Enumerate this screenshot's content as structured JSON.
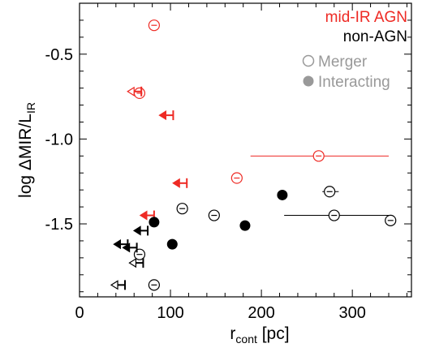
{
  "colors": {
    "agn": "#ee2a24",
    "nonagn": "#000000",
    "legend_gray": "#999999"
  },
  "chart_data": {
    "type": "scatter",
    "xlabel": {
      "main": "r",
      "sub": "cont",
      "unit": " [pc]"
    },
    "ylabel": {
      "main": "log ΔMIR/L",
      "sub": "IR"
    },
    "xlim": [
      0,
      365
    ],
    "ylim": [
      -1.93,
      -0.2
    ],
    "xticks": [
      0,
      100,
      200,
      300
    ],
    "xtick_labels": [
      "0",
      "100",
      "200",
      "300"
    ],
    "yticks": [
      -1.5,
      -1.0,
      -0.5
    ],
    "ytick_labels": [
      "-1.5",
      "-1.0",
      "-0.5"
    ],
    "legend": {
      "position": "top-right",
      "entries": [
        {
          "label": "mid-IR AGN",
          "kind": "text",
          "color": "#ee2a24"
        },
        {
          "label": "non-AGN",
          "kind": "text",
          "color": "#000000"
        },
        {
          "label": "Merger",
          "kind": "open-circle",
          "color": "#999999"
        },
        {
          "label": "Interacting",
          "kind": "filled-circle",
          "color": "#999999"
        }
      ]
    },
    "series": [
      {
        "name": "mid-IR AGN",
        "color": "#ee2a24",
        "points": [
          {
            "x": 82,
            "y": -0.33,
            "marker": "open-circle"
          },
          {
            "x": 66,
            "y": -0.73,
            "marker": "open-circle"
          },
          {
            "x": 173,
            "y": -1.23,
            "marker": "open-circle"
          },
          {
            "x": 263,
            "y": -1.1,
            "marker": "open-circle",
            "xerr": [
              188,
              340
            ]
          }
        ],
        "upper_limits": [
          {
            "x": 68,
            "y": -0.72,
            "marker": "open-arrow"
          },
          {
            "x": 103,
            "y": -0.86,
            "marker": "filled-arrow"
          },
          {
            "x": 118,
            "y": -1.26,
            "marker": "filled-arrow"
          },
          {
            "x": 82,
            "y": -1.45,
            "marker": "filled-arrow"
          }
        ]
      },
      {
        "name": "non-AGN",
        "color": "#000000",
        "points": [
          {
            "x": 82,
            "y": -1.49,
            "marker": "filled-circle"
          },
          {
            "x": 102,
            "y": -1.62,
            "marker": "filled-circle"
          },
          {
            "x": 182,
            "y": -1.51,
            "marker": "filled-circle"
          },
          {
            "x": 223,
            "y": -1.33,
            "marker": "filled-circle"
          },
          {
            "x": 113,
            "y": -1.41,
            "marker": "open-circle"
          },
          {
            "x": 148,
            "y": -1.45,
            "marker": "open-circle"
          },
          {
            "x": 275,
            "y": -1.31,
            "marker": "open-circle",
            "xerr": [
              267,
              285
            ]
          },
          {
            "x": 280,
            "y": -1.45,
            "marker": "open-circle",
            "xerr": [
              225,
              340
            ]
          },
          {
            "x": 342,
            "y": -1.48,
            "marker": "open-circle"
          },
          {
            "x": 66,
            "y": -1.68,
            "marker": "open-circle"
          },
          {
            "x": 82,
            "y": -1.86,
            "marker": "open-circle"
          }
        ],
        "upper_limits": [
          {
            "x": 75,
            "y": -1.54,
            "marker": "filled-arrow"
          },
          {
            "x": 53,
            "y": -1.62,
            "marker": "filled-arrow"
          },
          {
            "x": 63,
            "y": -1.64,
            "marker": "filled-arrow"
          },
          {
            "x": 70,
            "y": -1.73,
            "marker": "open-arrow"
          },
          {
            "x": 50,
            "y": -1.86,
            "marker": "open-arrow"
          }
        ]
      }
    ]
  }
}
